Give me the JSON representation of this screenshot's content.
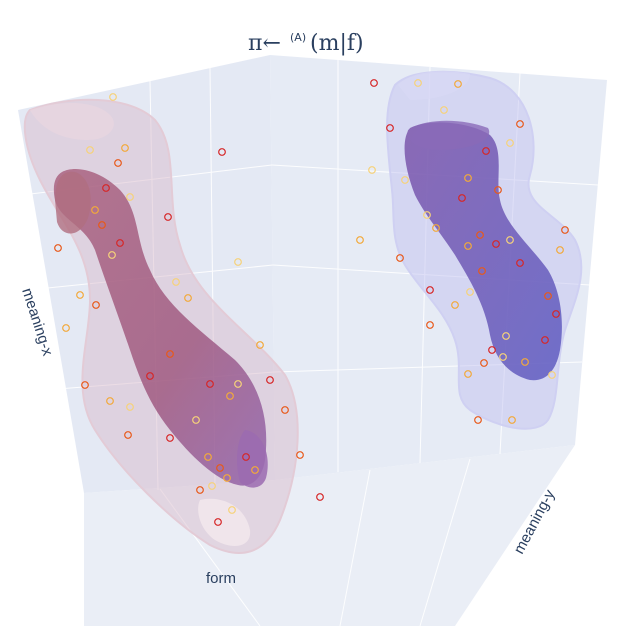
{
  "chart_data": {
    "type": "scatter",
    "title": "π←⁽ᴬ⁾(m|f)",
    "title_main": "π←",
    "title_sup": "(A)",
    "title_args": "(m|f)",
    "axes": {
      "x_label": "form",
      "y_label": "meaning-y",
      "z_label": "meaning-x"
    },
    "grid": true,
    "projection": "3d",
    "surfaces": [
      {
        "id": "left-outer",
        "color": "#c9a0b8",
        "shape": "s-curve tube"
      },
      {
        "id": "left-inner",
        "color": "#9e5078",
        "shape": "s-curve tube"
      },
      {
        "id": "right-outer",
        "color": "#b8b8ec",
        "shape": "s-curve tube"
      },
      {
        "id": "right-inner",
        "color": "#6b5bb8",
        "shape": "s-curve tube"
      }
    ],
    "marker_colors": [
      "#d62728",
      "#e8591a",
      "#f2a93b",
      "#f6d27a"
    ]
  }
}
